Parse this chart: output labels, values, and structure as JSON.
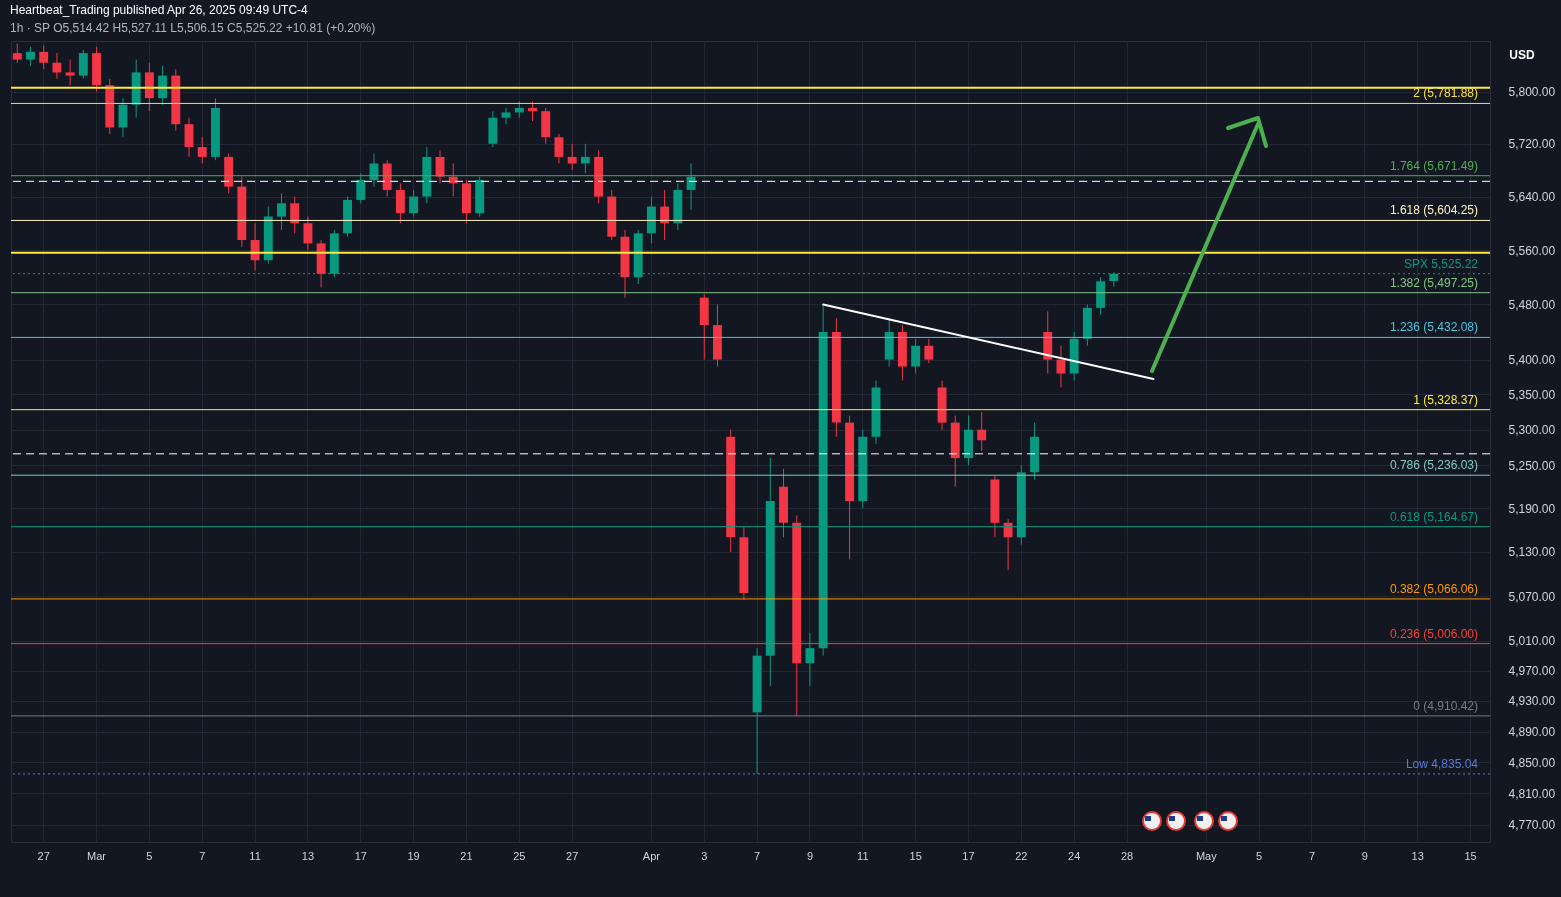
{
  "chart_data": {
    "type": "candlestick",
    "title": "Heartbeat_Trading published Apr 26, 2025 09:49 UTC-4",
    "subtitle": "1h · SP  O5,514.42  H5,527.11  L5,506.15  C5,525.22  +10.81 (+0.20%)",
    "categories": [
      null,
      null,
      "27",
      null,
      null,
      null,
      "Mar",
      null,
      null,
      null,
      "5",
      null,
      null,
      null,
      "7",
      null,
      null,
      null,
      "11",
      null,
      null,
      null,
      "13",
      null,
      null,
      null,
      "17",
      null,
      null,
      null,
      "19",
      null,
      null,
      null,
      "21",
      null,
      null,
      null,
      "25",
      null,
      null,
      null,
      "27",
      null,
      null,
      null,
      null,
      null,
      "Apr",
      null,
      null,
      null,
      "3",
      null,
      null,
      null,
      "7",
      null,
      null,
      null,
      "9",
      null,
      null,
      null,
      "11",
      null,
      null,
      null,
      "15",
      null,
      null,
      null,
      "17",
      null,
      null,
      null,
      "22",
      null,
      null,
      null,
      "24",
      null,
      null,
      null,
      "28",
      null,
      null,
      null,
      null,
      null,
      "May",
      null,
      null,
      null,
      "5",
      null,
      null,
      null,
      "7",
      null,
      null,
      null,
      "9",
      null,
      null,
      null,
      "13",
      null,
      null,
      null,
      "15",
      null
    ],
    "ohlc": [
      [
        5860,
        5875,
        5845,
        5850
      ],
      [
        5850,
        5870,
        5840,
        5862
      ],
      [
        5862,
        5872,
        5835,
        5845
      ],
      [
        5845,
        5860,
        5820,
        5830
      ],
      [
        5830,
        5850,
        5810,
        5825
      ],
      [
        5825,
        5865,
        5820,
        5860
      ],
      [
        5860,
        5870,
        5800,
        5810
      ],
      [
        5810,
        5820,
        5735,
        5745
      ],
      [
        5745,
        5790,
        5730,
        5780
      ],
      [
        5780,
        5850,
        5760,
        5830
      ],
      [
        5830,
        5845,
        5770,
        5790
      ],
      [
        5790,
        5840,
        5780,
        5825
      ],
      [
        5825,
        5835,
        5740,
        5750
      ],
      [
        5750,
        5760,
        5700,
        5715
      ],
      [
        5715,
        5730,
        5690,
        5700
      ],
      [
        5700,
        5790,
        5695,
        5775
      ],
      [
        5700,
        5705,
        5645,
        5655
      ],
      [
        5655,
        5670,
        5565,
        5575
      ],
      [
        5575,
        5600,
        5530,
        5545
      ],
      [
        5545,
        5625,
        5540,
        5610
      ],
      [
        5610,
        5645,
        5590,
        5630
      ],
      [
        5630,
        5640,
        5585,
        5600
      ],
      [
        5600,
        5610,
        5560,
        5570
      ],
      [
        5570,
        5575,
        5505,
        5525
      ],
      [
        5525,
        5590,
        5520,
        5585
      ],
      [
        5585,
        5640,
        5580,
        5635
      ],
      [
        5635,
        5675,
        5630,
        5665
      ],
      [
        5665,
        5705,
        5655,
        5690
      ],
      [
        5690,
        5695,
        5640,
        5650
      ],
      [
        5650,
        5660,
        5600,
        5615
      ],
      [
        5615,
        5650,
        5610,
        5640
      ],
      [
        5640,
        5715,
        5630,
        5700
      ],
      [
        5700,
        5710,
        5660,
        5670
      ],
      [
        5670,
        5690,
        5640,
        5660
      ],
      [
        5660,
        5665,
        5600,
        5615
      ],
      [
        5615,
        5670,
        5610,
        5665
      ],
      [
        5720,
        5770,
        5715,
        5760
      ],
      [
        5760,
        5775,
        5750,
        5768
      ],
      [
        5768,
        5785,
        5760,
        5775
      ],
      [
        5775,
        5785,
        5755,
        5770
      ],
      [
        5770,
        5775,
        5720,
        5730
      ],
      [
        5730,
        5735,
        5690,
        5700
      ],
      [
        5700,
        5720,
        5680,
        5690
      ],
      [
        5690,
        5720,
        5675,
        5700
      ],
      [
        5700,
        5710,
        5630,
        5640
      ],
      [
        5640,
        5650,
        5575,
        5580
      ],
      [
        5580,
        5590,
        5490,
        5520
      ],
      [
        5520,
        5590,
        5510,
        5585
      ],
      [
        5585,
        5640,
        5570,
        5625
      ],
      [
        5625,
        5650,
        5575,
        5600
      ],
      [
        5600,
        5660,
        5590,
        5650
      ],
      [
        5650,
        5690,
        5620,
        5670
      ],
      [
        5490,
        5495,
        5400,
        5450
      ],
      [
        5450,
        5480,
        5390,
        5400
      ],
      [
        5290,
        5300,
        5130,
        5150
      ],
      [
        5150,
        5165,
        5065,
        5074
      ],
      [
        4915,
        5000,
        4835.04,
        4990
      ],
      [
        4990,
        5260,
        4950,
        5200
      ],
      [
        5220,
        5245,
        5150,
        5170
      ],
      [
        5170,
        5180,
        4910,
        4980
      ],
      [
        4980,
        5020,
        4950,
        5000
      ],
      [
        5000,
        5480,
        4990,
        5440
      ],
      [
        5440,
        5460,
        5290,
        5310
      ],
      [
        5310,
        5320,
        5120,
        5200
      ],
      [
        5200,
        5300,
        5190,
        5290
      ],
      [
        5290,
        5370,
        5280,
        5360
      ],
      [
        5400,
        5460,
        5390,
        5440
      ],
      [
        5440,
        5450,
        5370,
        5390
      ],
      [
        5390,
        5430,
        5380,
        5420
      ],
      [
        5420,
        5430,
        5395,
        5400
      ],
      [
        5360,
        5370,
        5300,
        5310
      ],
      [
        5310,
        5320,
        5220,
        5260
      ],
      [
        5260,
        5320,
        5250,
        5300
      ],
      [
        5300,
        5325,
        5270,
        5285
      ],
      [
        5230,
        5235,
        5150,
        5170
      ],
      [
        5170,
        5175,
        5105,
        5150
      ],
      [
        5150,
        5250,
        5140,
        5240
      ],
      [
        5240,
        5310,
        5230,
        5290
      ],
      [
        5440,
        5470,
        5380,
        5400
      ],
      [
        5400,
        5420,
        5360,
        5380
      ],
      [
        5380,
        5440,
        5370,
        5430
      ],
      [
        5430,
        5480,
        5420,
        5475
      ],
      [
        5475,
        5520,
        5465,
        5514
      ],
      [
        5514.42,
        5527.11,
        5506.15,
        5525.22
      ],
      null,
      null,
      null,
      null,
      null,
      null,
      null,
      null,
      null,
      null,
      null,
      null,
      null,
      null,
      null,
      null,
      null,
      null,
      null,
      null,
      null,
      null,
      null,
      null,
      null,
      null,
      null,
      null
    ],
    "colors": [
      "#f23645",
      "#089981",
      "#f23645",
      "#f23645",
      "#f23645",
      "#089981",
      "#f23645",
      "#f23645",
      "#089981",
      "#089981",
      "#f23645",
      "#089981",
      "#f23645",
      "#f23645",
      "#f23645",
      "#089981",
      "#f23645",
      "#f23645",
      "#f23645",
      "#089981",
      "#089981",
      "#f23645",
      "#f23645",
      "#f23645",
      "#089981",
      "#089981",
      "#089981",
      "#089981",
      "#f23645",
      "#f23645",
      "#089981",
      "#089981",
      "#f23645",
      "#f23645",
      "#f23645",
      "#089981",
      "#089981",
      "#089981",
      "#089981",
      "#f23645",
      "#f23645",
      "#f23645",
      "#f23645",
      "#089981",
      "#f23645",
      "#f23645",
      "#f23645",
      "#089981",
      "#089981",
      "#f23645",
      "#089981",
      "#089981",
      "#f23645",
      "#f23645",
      "#f23645",
      "#f23645",
      "#089981",
      "#089981",
      "#f23645",
      "#f23645",
      "#089981",
      "#089981",
      "#f23645",
      "#f23645",
      "#089981",
      "#089981",
      "#089981",
      "#f23645",
      "#089981",
      "#f23645",
      "#f23645",
      "#f23645",
      "#089981",
      "#f23645",
      "#f23645",
      "#f23645",
      "#089981",
      "#089981",
      "#f23645",
      "#f23645",
      "#089981",
      "#089981",
      "#089981",
      "#089981",
      null,
      null,
      null,
      null,
      null,
      null,
      null,
      null,
      null,
      null,
      null,
      null,
      null,
      null,
      null,
      null,
      null,
      null,
      null,
      null,
      null,
      null,
      null,
      null,
      null,
      null,
      null,
      null
    ],
    "series": [
      {
        "type": "line",
        "color": "#ffffff",
        "values": [
          null,
          null,
          null,
          null,
          null,
          null,
          null,
          null,
          null,
          null,
          null,
          null,
          null,
          null,
          null,
          null,
          null,
          null,
          null,
          null,
          null,
          null,
          null,
          null,
          null,
          null,
          null,
          null,
          null,
          null,
          null,
          null,
          null,
          null,
          null,
          null,
          null,
          null,
          null,
          null,
          null,
          null,
          null,
          null,
          null,
          null,
          null,
          null,
          null,
          null,
          null,
          null,
          null,
          null,
          null,
          null,
          null,
          null,
          null,
          null,
          null,
          5480,
          null,
          null,
          null,
          null,
          null,
          null,
          null,
          null,
          null,
          null,
          null,
          null,
          null,
          null,
          null,
          null,
          null,
          null,
          null,
          null,
          null,
          null,
          null,
          null,
          5372,
          null,
          null,
          null,
          null,
          null,
          null,
          null,
          null,
          null,
          null,
          null,
          null,
          null,
          null,
          null,
          null,
          null,
          null,
          null,
          null,
          null,
          null,
          null,
          null,
          null
        ]
      }
    ],
    "ref_lines": [
      {
        "axis": "y",
        "value": 5806,
        "color": "#ffeb3b"
      },
      {
        "axis": "y",
        "value": 5556,
        "color": "#ffeb3b"
      },
      {
        "axis": "y",
        "value": 5663,
        "color": "#ffffff",
        "line_style": "dashed"
      },
      {
        "axis": "y",
        "value": 5266,
        "color": "#ffffff",
        "line_style": "dashed"
      },
      {
        "axis": "y",
        "value": 5781.88,
        "label": "2 (5,781.88)",
        "color": "#f5e04a"
      },
      {
        "axis": "y",
        "value": 5671.49,
        "label": "1.764 (5,671.49)",
        "color": "#4caf50"
      },
      {
        "axis": "y",
        "value": 5604.25,
        "label": "1.618 (5,604.25)",
        "color": "#fff3c4"
      },
      {
        "axis": "y",
        "value": 5497.25,
        "label": "1.382 (5,497.25)",
        "color": "#81c784"
      },
      {
        "axis": "y",
        "value": 5432.08,
        "label": "1.236 (5,432.08)",
        "color": "#4dc3e0"
      },
      {
        "axis": "y",
        "value": 5328.37,
        "label": "1 (5,328.37)",
        "color": "#ffeb3b"
      },
      {
        "axis": "y",
        "value": 5236.03,
        "label": "0.786 (5,236.03)",
        "color": "#80cbc4"
      },
      {
        "axis": "y",
        "value": 5164.67,
        "label": "0.618 (5,164.67)",
        "color": "#089981"
      },
      {
        "axis": "y",
        "value": 5066.06,
        "label": "0.382 (5,066.06)",
        "color": "#ff9800"
      },
      {
        "axis": "y",
        "value": 5006.0,
        "label": "0.236 (5,006.00)",
        "color": "#f44336"
      },
      {
        "axis": "y",
        "value": 4910.42,
        "label": "0 (4,910.42)",
        "color": "#787b86"
      },
      {
        "axis": "y",
        "value": 5525.22,
        "label": "SPX 5,525.22",
        "color": "#089981",
        "line_style": "dotted"
      },
      {
        "axis": "y",
        "value": 4835.04,
        "label": "Low 4,835.04",
        "color": "#5b7bd5",
        "line_style": "dotted"
      }
    ],
    "annotations": [
      "USD"
    ],
    "log": "y",
    "grid": true,
    "ylim": [
      4748,
      5879
    ],
    "yticks": [
      {
        "value": 4770,
        "label": "4,770.00"
      },
      {
        "value": 4810,
        "label": "4,810.00"
      },
      {
        "value": 4850,
        "label": "4,850.00"
      },
      {
        "value": 4890,
        "label": "4,890.00"
      },
      {
        "value": 4930,
        "label": "4,930.00"
      },
      {
        "value": 4970,
        "label": "4,970.00"
      },
      {
        "value": 5010,
        "label": "5,010.00"
      },
      {
        "value": 5070,
        "label": "5,070.00"
      },
      {
        "value": 5130,
        "label": "5,130.00"
      },
      {
        "value": 5190,
        "label": "5,190.00"
      },
      {
        "value": 5250,
        "label": "5,250.00"
      },
      {
        "value": 5300,
        "label": "5,300.00"
      },
      {
        "value": 5350,
        "label": "5,350.00"
      },
      {
        "value": 5400,
        "label": "5,400.00"
      },
      {
        "value": 5480,
        "label": "5,480.00"
      },
      {
        "value": 5560,
        "label": "5,560.00"
      },
      {
        "value": 5640,
        "label": "5,640.00"
      },
      {
        "value": 5720,
        "label": "5,720.00"
      },
      {
        "value": 5800,
        "label": "5,800.00"
      }
    ]
  }
}
